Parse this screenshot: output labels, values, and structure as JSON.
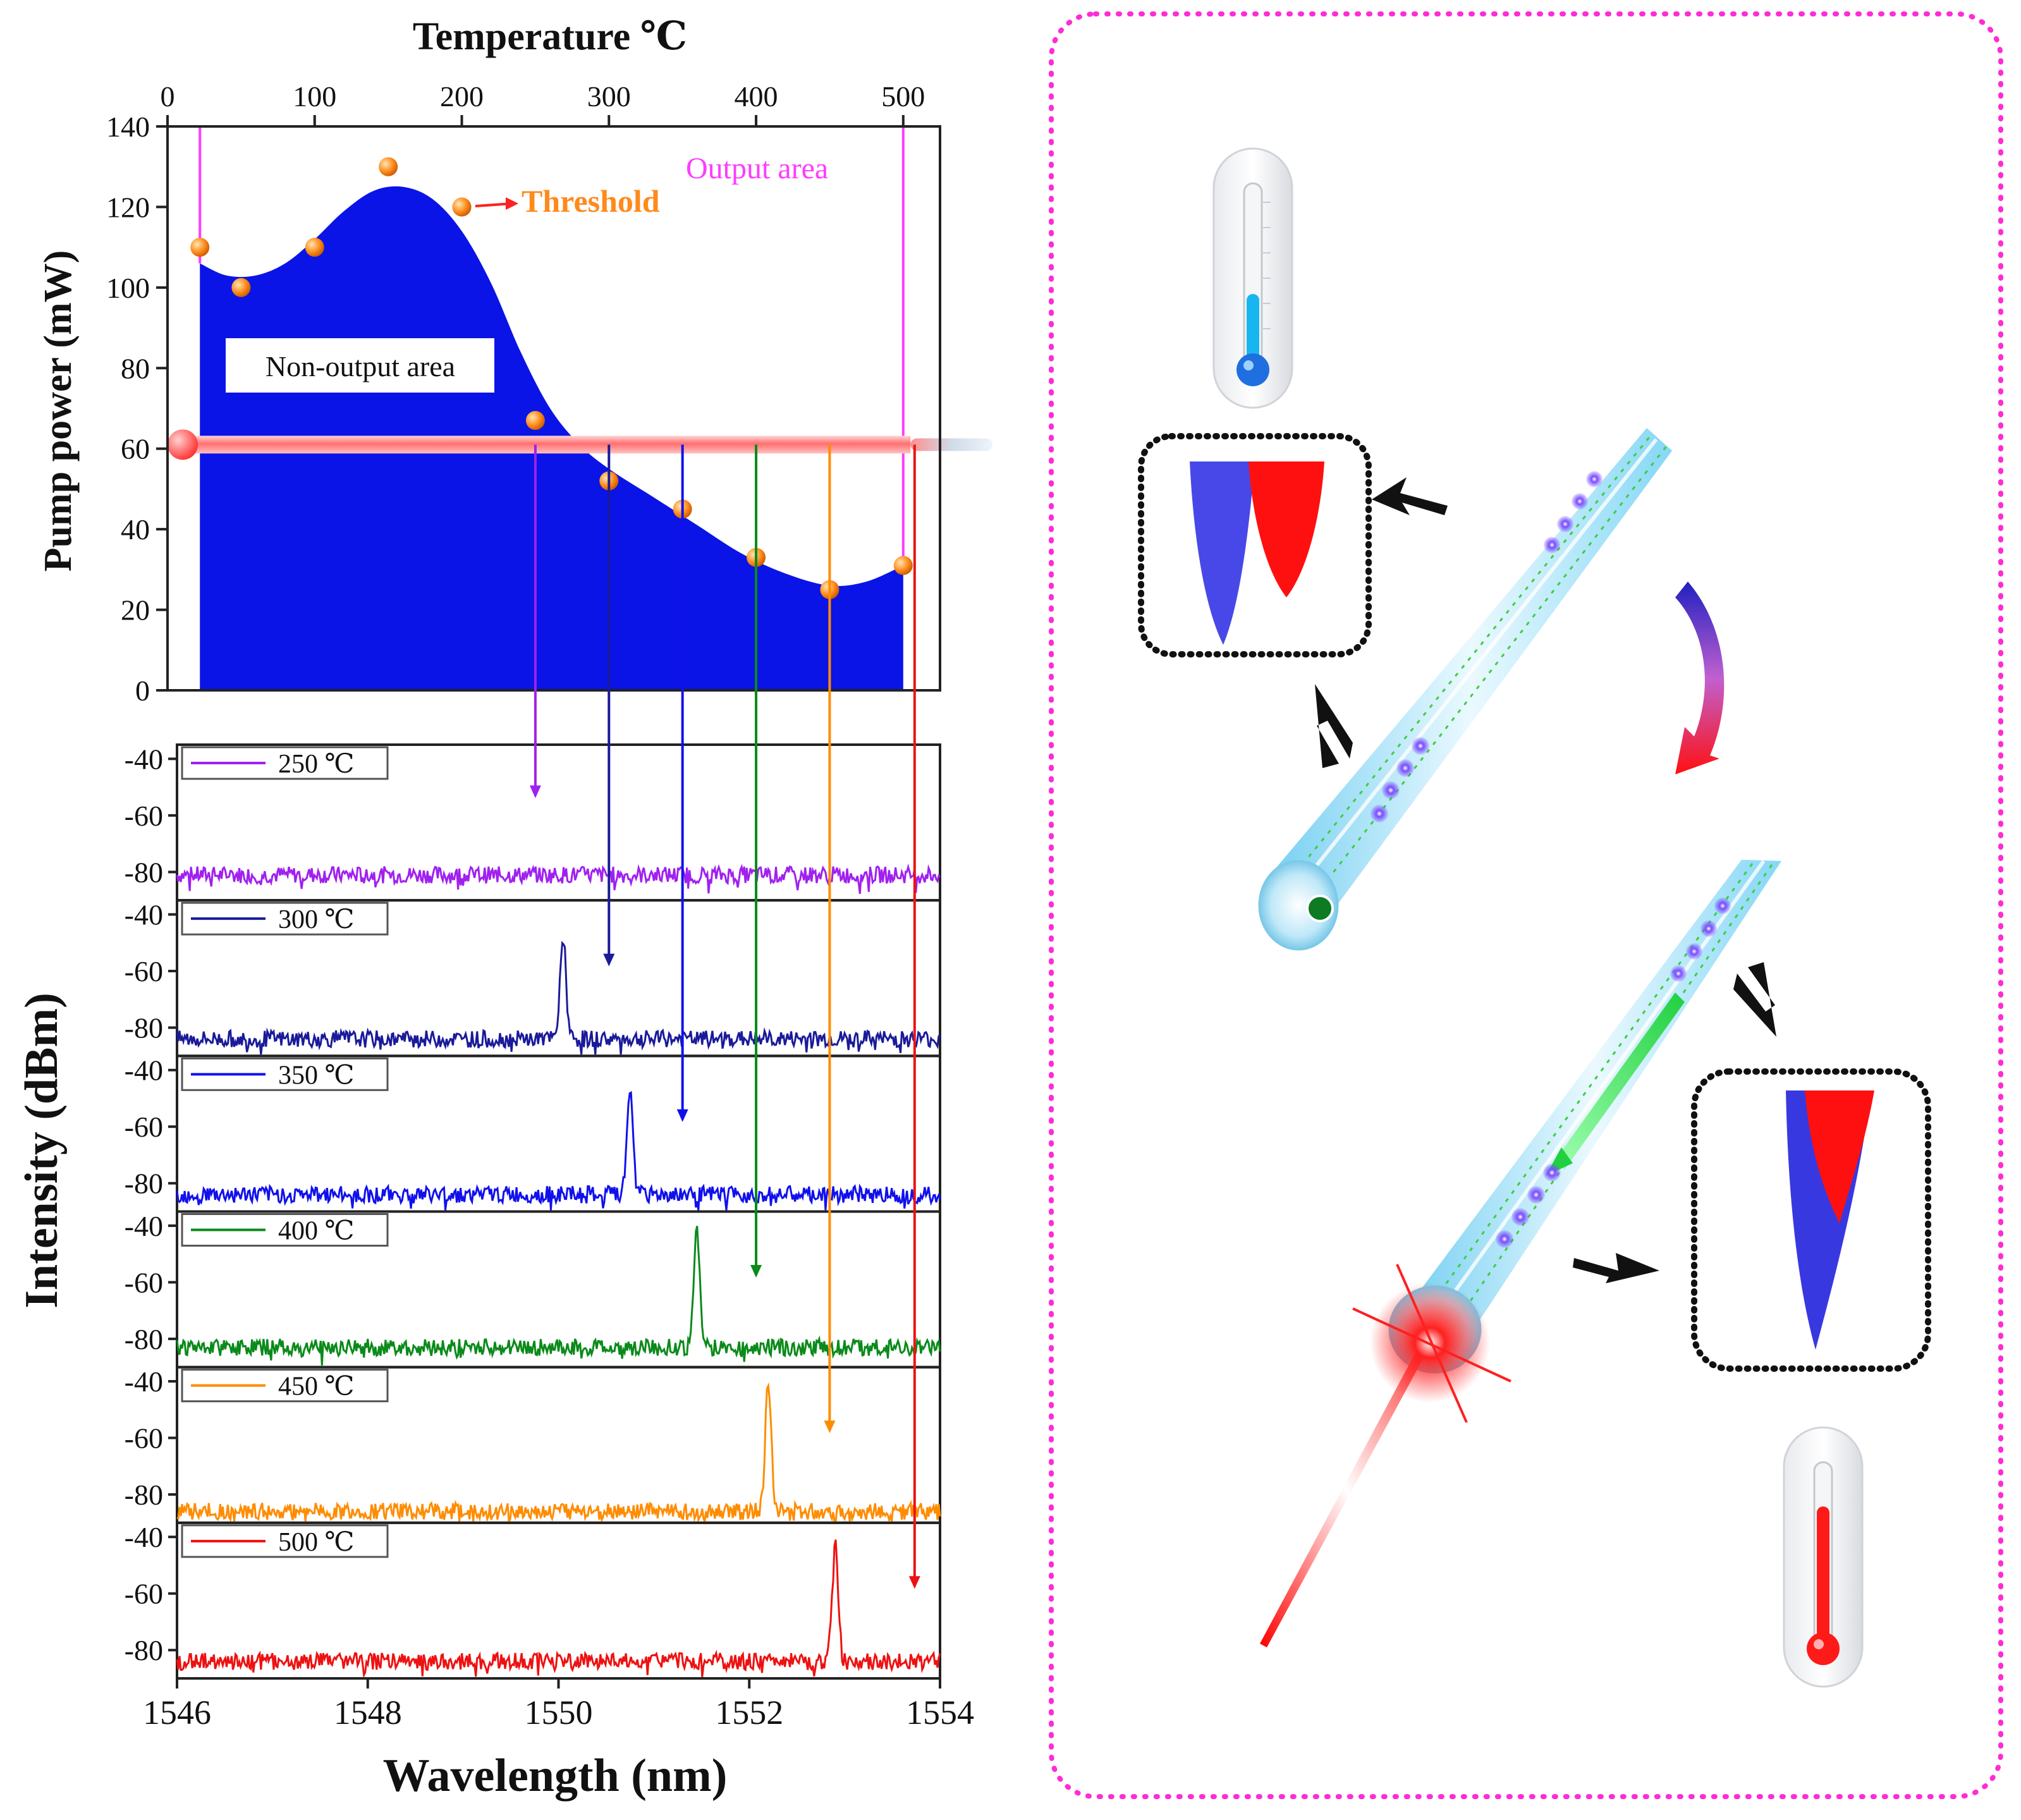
{
  "colors": {
    "fill": "#0a14e6",
    "threshold": "#ff8a1c",
    "output": "#ff3cff",
    "pump": "#ff5a5a",
    "frame": "#ff2bd6"
  },
  "chart_data": [
    {
      "type": "area",
      "xlabel": "Temperature ℃",
      "ylabel": "Pump power  (mW)",
      "xlim": [
        0,
        525
      ],
      "ylim": [
        0,
        140
      ],
      "xticks": [
        0,
        100,
        200,
        300,
        400,
        500
      ],
      "yticks": [
        0,
        20,
        40,
        60,
        80,
        100,
        120,
        140
      ],
      "curve_x": [
        22,
        40,
        60,
        80,
        100,
        120,
        140,
        160,
        180,
        200,
        220,
        240,
        260,
        280,
        300,
        330,
        360,
        390,
        420,
        450,
        475,
        500
      ],
      "curve_y": [
        106,
        103,
        103,
        106,
        112,
        119,
        124,
        125,
        122,
        114,
        101,
        84,
        70,
        61,
        55,
        48,
        41,
        34,
        29,
        26,
        27,
        31
      ],
      "threshold_x": [
        22,
        50,
        100,
        150,
        200,
        250,
        300,
        350,
        400,
        450,
        500
      ],
      "threshold_y": [
        110,
        100,
        110,
        130,
        120,
        67,
        52,
        45,
        33,
        25,
        31
      ],
      "pump_level": 61,
      "annotations": {
        "threshold": "Threshold",
        "output": "Output area",
        "non_output": "Non-output area"
      },
      "area_boundaries": [
        22,
        500
      ]
    },
    {
      "type": "line",
      "xlabel": "Wavelength (nm)",
      "ylabel": "Intensity (dBm)",
      "xlim": [
        1546,
        1554
      ],
      "xticks": [
        1546,
        1548,
        1550,
        1552,
        1554
      ],
      "yticks": [
        -40,
        -60,
        -80
      ],
      "series": [
        {
          "name": "250 ℃",
          "color": "#a020f0",
          "baseline": -81,
          "peak_x": null,
          "peak_y": null
        },
        {
          "name": "300 ℃",
          "color": "#1a1a9a",
          "baseline": -84,
          "peak_x": 1550.05,
          "peak_y": -48
        },
        {
          "name": "350 ℃",
          "color": "#1010ee",
          "baseline": -84,
          "peak_x": 1550.75,
          "peak_y": -47
        },
        {
          "name": "400 ℃",
          "color": "#0a8a1a",
          "baseline": -83,
          "peak_x": 1551.45,
          "peak_y": -42
        },
        {
          "name": "450 ℃",
          "color": "#ff8c00",
          "baseline": -86,
          "peak_x": 1552.2,
          "peak_y": -40
        },
        {
          "name": "500 ℃",
          "color": "#ee1111",
          "baseline": -84,
          "peak_x": 1552.9,
          "peak_y": -42
        }
      ],
      "arrow_temperatures": [
        250,
        300,
        350,
        400,
        450,
        500
      ]
    }
  ]
}
